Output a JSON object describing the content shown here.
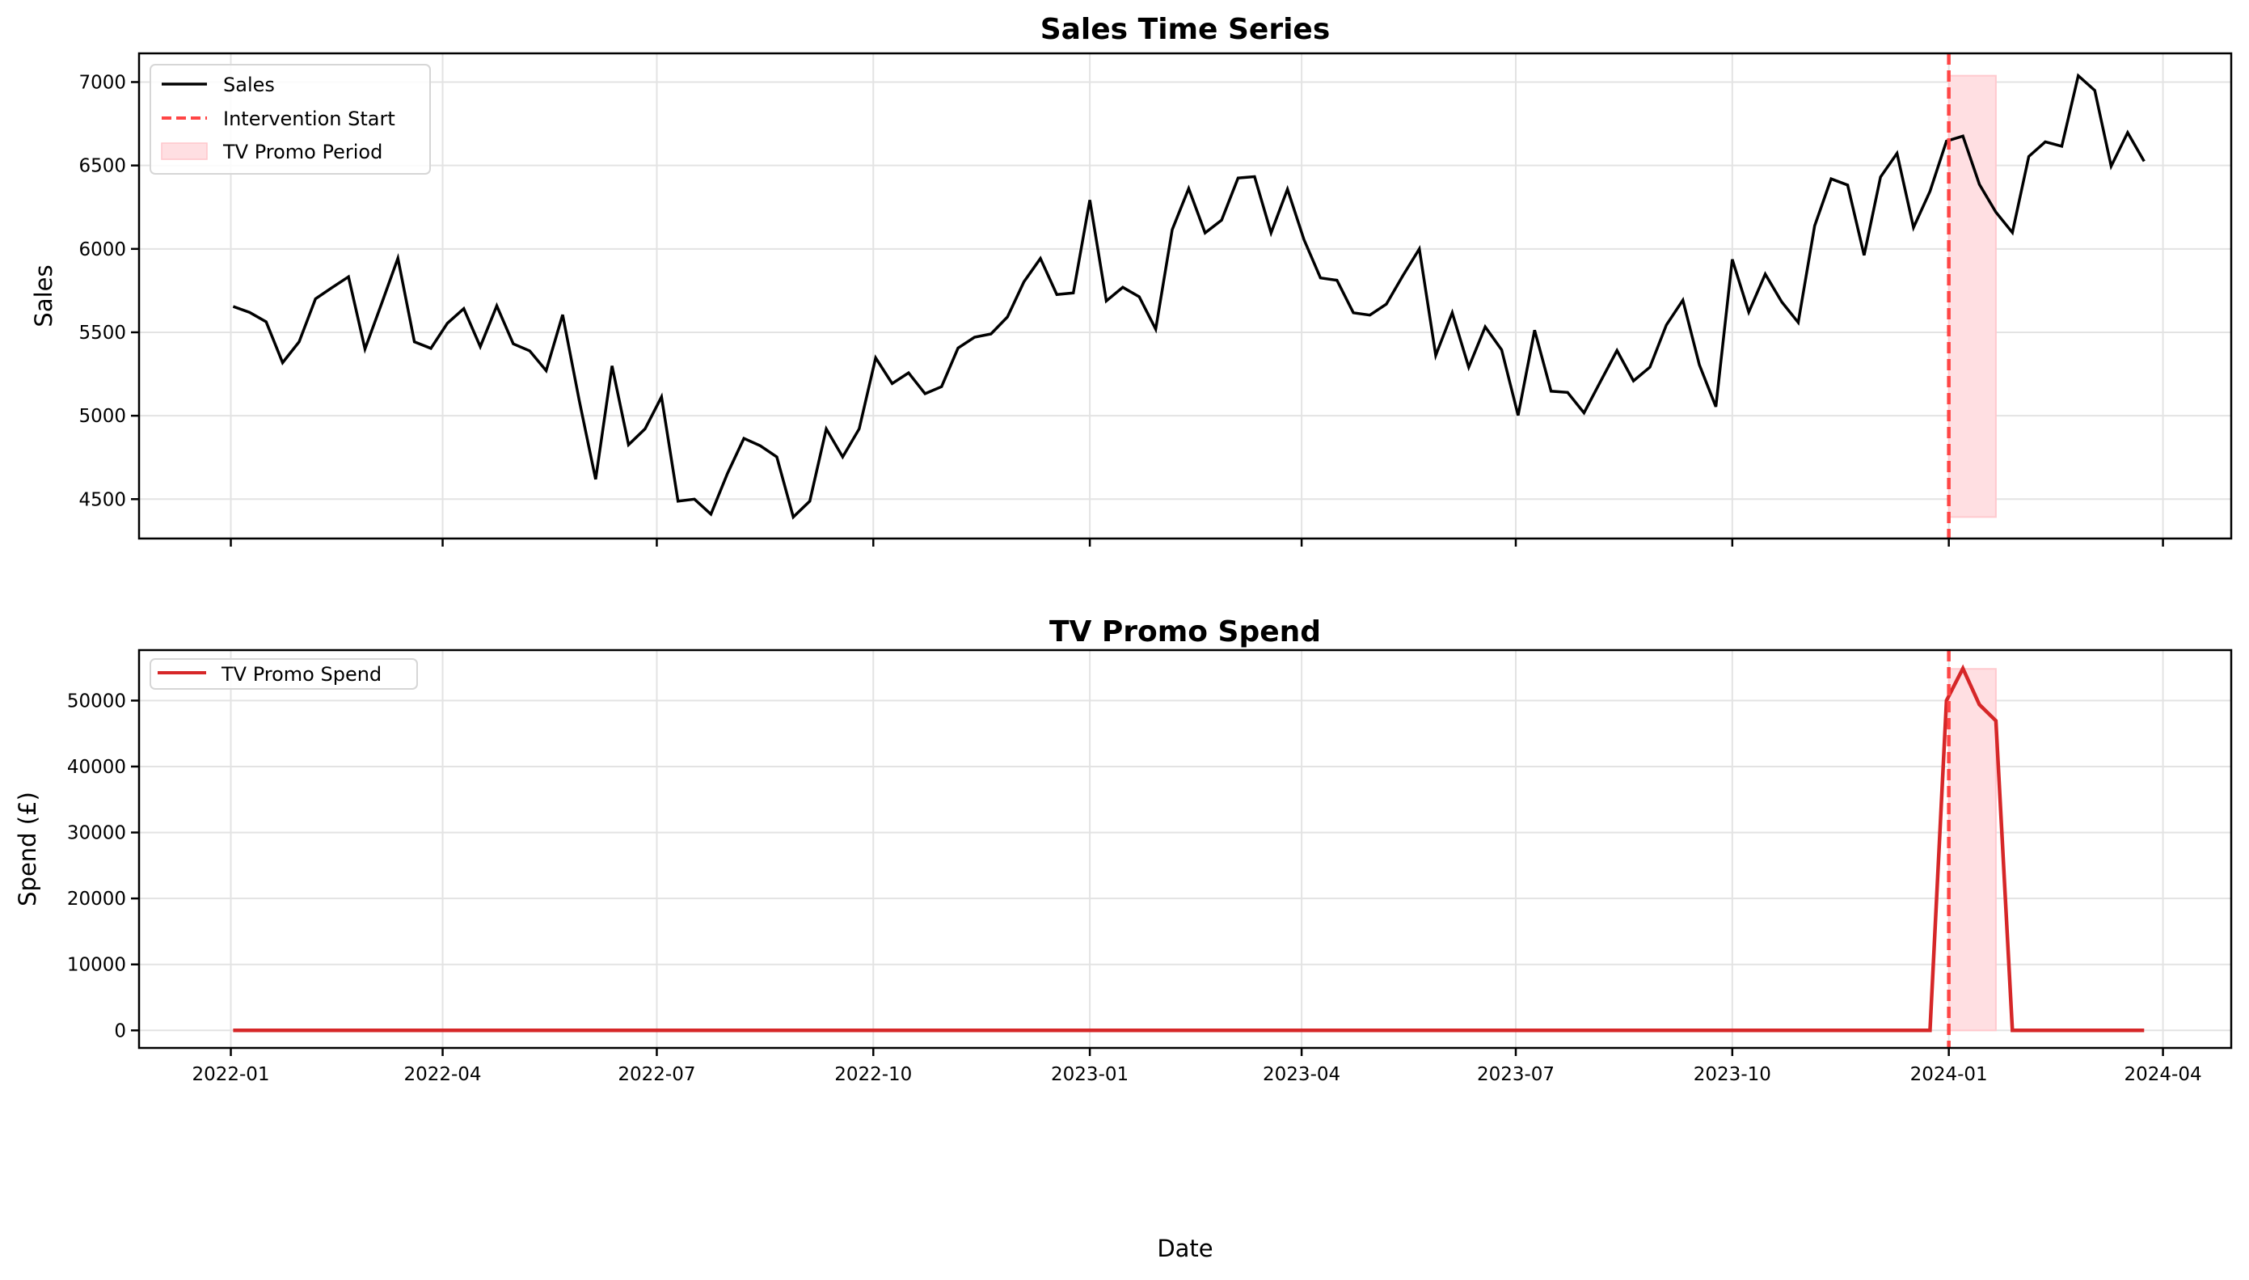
{
  "chart_data": [
    {
      "type": "line",
      "title": "Sales Time Series",
      "xlabel": "",
      "ylabel": "Sales",
      "x_start": "2022-01-02",
      "x_frequency": "weekly",
      "xlim": [
        "2021-11-23",
        "2024-04-30"
      ],
      "ylim": [
        4264,
        7172
      ],
      "yticks": [
        4500,
        5000,
        5500,
        6000,
        6500,
        7000
      ],
      "xticks": [
        "2022-01",
        "2022-04",
        "2022-07",
        "2022-10",
        "2023-01",
        "2023-04",
        "2023-07",
        "2023-10",
        "2024-01",
        "2024-04"
      ],
      "show_xtick_labels": false,
      "grid": true,
      "legend_position": "top-left",
      "series": [
        {
          "name": "Sales",
          "color": "#000000",
          "values": [
            5655,
            5619,
            5563,
            5318,
            5443,
            5701,
            5768,
            5833,
            5400,
            5669,
            5944,
            5443,
            5404,
            5554,
            5642,
            5414,
            5659,
            5431,
            5389,
            5270,
            5605,
            5094,
            4619,
            5299,
            4826,
            4921,
            5113,
            4488,
            4500,
            4410,
            4653,
            4864,
            4820,
            4753,
            4393,
            4488,
            4921,
            4753,
            4921,
            5347,
            5193,
            5257,
            5132,
            5174,
            5406,
            5471,
            5490,
            5592,
            5803,
            5943,
            5726,
            5736,
            6293,
            5688,
            5770,
            5713,
            5519,
            6115,
            6362,
            6096,
            6172,
            6425,
            6433,
            6096,
            6358,
            6056,
            5826,
            5812,
            5617,
            5603,
            5669,
            5839,
            6000,
            5362,
            5617,
            5291,
            5533,
            5395,
            5002,
            5513,
            5147,
            5140,
            5017,
            5205,
            5391,
            5209,
            5291,
            5544,
            5693,
            5305,
            5054,
            5937,
            5621,
            5849,
            5682,
            5559,
            6138,
            6420,
            6383,
            5962,
            6431,
            6573,
            6128,
            6345,
            6646,
            6676,
            6387,
            6220,
            6098,
            6554,
            6642,
            6615,
            7038,
            6950,
            6496,
            6697,
            6525
          ]
        }
      ],
      "intervention": {
        "name": "Intervention Start",
        "date": "2024-01-01",
        "color": "#ff4545",
        "style": "dashed"
      },
      "shaded_region": {
        "name": "TV Promo Period",
        "start": "2024-01-01",
        "end": "2024-01-21",
        "y_range": [
          4393,
          7038
        ],
        "color": "#ffdfe2"
      }
    },
    {
      "type": "line",
      "title": "TV Promo Spend",
      "xlabel": "Date",
      "ylabel": "Spend (£)",
      "x_start": "2022-01-02",
      "x_frequency": "weekly",
      "xlim": [
        "2021-11-23",
        "2024-04-30"
      ],
      "ylim": [
        -2660,
        57650
      ],
      "yticks": [
        0,
        10000,
        20000,
        30000,
        40000,
        50000
      ],
      "xticks": [
        "2022-01",
        "2022-04",
        "2022-07",
        "2022-10",
        "2023-01",
        "2023-04",
        "2023-07",
        "2023-10",
        "2024-01",
        "2024-04"
      ],
      "show_xtick_labels": true,
      "grid": true,
      "legend_position": "top-left",
      "series": [
        {
          "name": "TV Promo Spend",
          "color": "#d62728",
          "values": [
            0,
            0,
            0,
            0,
            0,
            0,
            0,
            0,
            0,
            0,
            0,
            0,
            0,
            0,
            0,
            0,
            0,
            0,
            0,
            0,
            0,
            0,
            0,
            0,
            0,
            0,
            0,
            0,
            0,
            0,
            0,
            0,
            0,
            0,
            0,
            0,
            0,
            0,
            0,
            0,
            0,
            0,
            0,
            0,
            0,
            0,
            0,
            0,
            0,
            0,
            0,
            0,
            0,
            0,
            0,
            0,
            0,
            0,
            0,
            0,
            0,
            0,
            0,
            0,
            0,
            0,
            0,
            0,
            0,
            0,
            0,
            0,
            0,
            0,
            0,
            0,
            0,
            0,
            0,
            0,
            0,
            0,
            0,
            0,
            0,
            0,
            0,
            0,
            0,
            0,
            0,
            0,
            0,
            0,
            0,
            0,
            0,
            0,
            0,
            0,
            0,
            0,
            0,
            0,
            50000,
            54870,
            49390,
            46940,
            0,
            0,
            0,
            0,
            0,
            0,
            0,
            0,
            0
          ]
        }
      ],
      "intervention": {
        "date": "2024-01-01",
        "color": "#ff4545",
        "style": "dashed"
      },
      "shaded_region": {
        "start": "2024-01-01",
        "end": "2024-01-21",
        "y_range": [
          0,
          54800
        ],
        "color": "#ffdfe2"
      }
    }
  ]
}
